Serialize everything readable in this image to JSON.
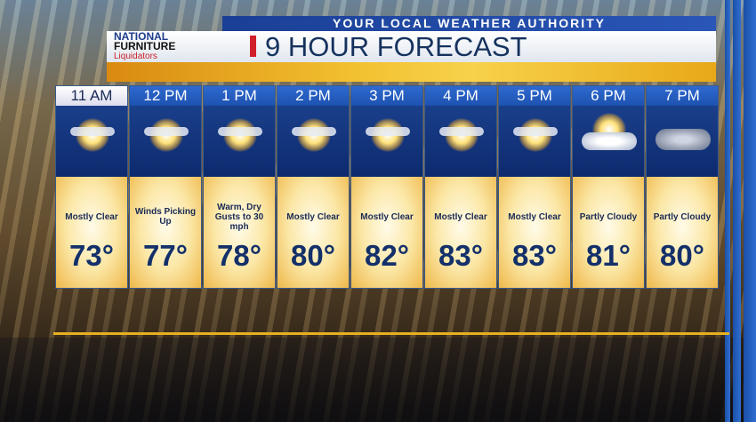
{
  "header": {
    "subtitle": "YOUR LOCAL WEATHER AUTHORITY",
    "title": "9 HOUR FORECAST",
    "sponsor": {
      "line1": "NATIONAL",
      "line2": "FURNITURE",
      "line3": "Liquidators"
    }
  },
  "colors": {
    "accent_red": "#d01e2a",
    "header_blue": "#1d52b0",
    "title_navy": "#16325e",
    "gold": "#e6b020"
  },
  "forecast": [
    {
      "hour": "11 AM",
      "icon": "mostly-clear-sun-icon",
      "desc": "Mostly Clear",
      "temp": "73°"
    },
    {
      "hour": "12 PM",
      "icon": "mostly-clear-sun-icon",
      "desc": "Winds Picking Up",
      "temp": "77°"
    },
    {
      "hour": "1 PM",
      "icon": "mostly-clear-sun-icon",
      "desc": "Warm, Dry Gusts to 30 mph",
      "temp": "78°"
    },
    {
      "hour": "2 PM",
      "icon": "mostly-clear-sun-icon",
      "desc": "Mostly Clear",
      "temp": "80°"
    },
    {
      "hour": "3 PM",
      "icon": "mostly-clear-sun-icon",
      "desc": "Mostly Clear",
      "temp": "82°"
    },
    {
      "hour": "4 PM",
      "icon": "mostly-clear-sun-icon",
      "desc": "Mostly Clear",
      "temp": "83°"
    },
    {
      "hour": "5 PM",
      "icon": "mostly-clear-sun-icon",
      "desc": "Mostly Clear",
      "temp": "83°"
    },
    {
      "hour": "6 PM",
      "icon": "partly-cloudy-sun-icon",
      "desc": "Partly Cloudy",
      "temp": "81°"
    },
    {
      "hour": "7 PM",
      "icon": "partly-cloudy-moon-icon",
      "desc": "Partly Cloudy",
      "temp": "80°"
    }
  ]
}
